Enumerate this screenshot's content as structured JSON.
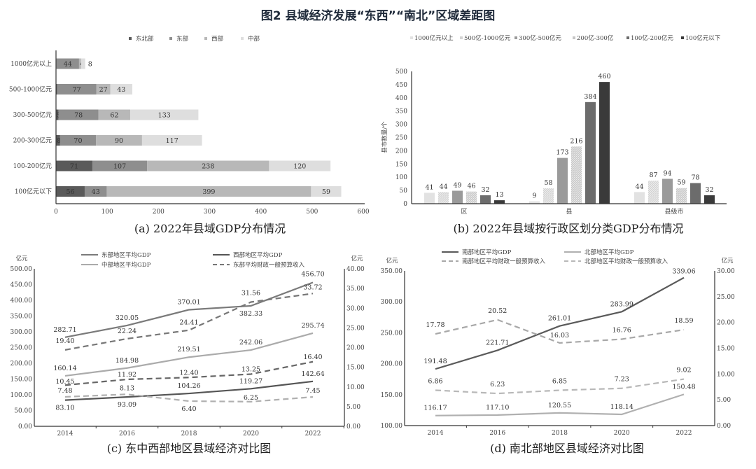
{
  "title": "图2 县域经济发展“东西”“南北”区域差距图",
  "chart_data": [
    {
      "id": "a",
      "type": "bar",
      "orientation": "horizontal",
      "stacked": true,
      "caption": "(a) 2022年县域GDP分布情况",
      "categories": [
        "1000亿元以上",
        "500-1000亿元",
        "300-500亿元",
        "200-300亿元",
        "100-200亿元",
        "100亿元以下"
      ],
      "series": [
        {
          "name": "东北部",
          "color": "#5a5a5a",
          "values": [
            1,
            2,
            5,
            8,
            71,
            56
          ]
        },
        {
          "name": "东部",
          "color": "#8e8e8e",
          "values": [
            44,
            77,
            78,
            70,
            107,
            43
          ]
        },
        {
          "name": "西部",
          "color": "#b8b8b8",
          "values": [
            4,
            27,
            62,
            90,
            238,
            399
          ]
        },
        {
          "name": "中部",
          "color": "#dedede",
          "values": [
            8,
            43,
            133,
            117,
            120,
            59
          ]
        }
      ],
      "xlim": [
        0,
        600
      ],
      "xticks": [
        "0",
        "100",
        "200",
        "300",
        "400",
        "500",
        "600"
      ],
      "legend": "top"
    },
    {
      "id": "b",
      "type": "bar",
      "caption": "(b) 2022年县域按行政区划分类GDP分布情况",
      "ylabel": "县市数量/个",
      "categories": [
        "区",
        "县",
        "县级市"
      ],
      "series": [
        {
          "name": "1000亿元以上",
          "color": "#e2e2e2",
          "values": [
            41,
            9,
            44
          ]
        },
        {
          "name": "500亿-1000亿元",
          "color": "#d4d4d4",
          "values": [
            44,
            58,
            87
          ]
        },
        {
          "name": "300亿-500亿元",
          "color": "#9a9a9a",
          "values": [
            49,
            173,
            94
          ]
        },
        {
          "name": "200亿-300亿",
          "color": "#c6c6c6",
          "values": [
            46,
            216,
            59
          ]
        },
        {
          "name": "100亿-200亿元",
          "color": "#6c6c6c",
          "values": [
            32,
            384,
            78
          ]
        },
        {
          "name": "100亿元以下",
          "color": "#3a3a3a",
          "values": [
            13,
            460,
            32
          ]
        }
      ],
      "ylim": [
        0,
        500
      ],
      "yticks": [
        "0",
        "50",
        "100",
        "150",
        "200",
        "250",
        "300",
        "350",
        "400",
        "450",
        "500"
      ],
      "legend": "top"
    },
    {
      "id": "c",
      "type": "line",
      "caption": "(c) 东中西部地区县域经济对比图",
      "ylabel_left": "亿元",
      "ylabel_right": "亿元",
      "x": [
        "2014",
        "2016",
        "2018",
        "2020",
        "2022"
      ],
      "ylim_left": [
        0,
        500
      ],
      "ylim_right": [
        0,
        40
      ],
      "yticks_left": [
        "0.00",
        "50.00",
        "100.00",
        "150.00",
        "200.00",
        "250.00",
        "300.00",
        "350.00",
        "400.00",
        "450.00",
        "500.00"
      ],
      "yticks_right": [
        "0.00",
        "5.00",
        "10.00",
        "15.00",
        "20.00",
        "25.00",
        "30.00",
        "35.00",
        "40.00"
      ],
      "series": [
        {
          "name": "东部地区平均GDP",
          "axis": "left",
          "style": "solid",
          "color": "#7a7a7a",
          "values": [
            "282.71",
            "320.05",
            "370.01",
            "382.33",
            "456.70"
          ]
        },
        {
          "name": "西部地区平均GDP",
          "axis": "left",
          "style": "solid",
          "color": "#555555",
          "values": [
            "83.10",
            "93.09",
            "104.26",
            "119.27",
            "142.64"
          ]
        },
        {
          "name": "中部地区平均GDP",
          "axis": "left",
          "style": "solid",
          "color": "#ababab",
          "values": [
            "160.14",
            "184.98",
            "219.51",
            "242.06",
            "295.74"
          ]
        },
        {
          "name": "东部平均财政一般预算收入",
          "axis": "right",
          "style": "dashed",
          "color": "#777777",
          "values": [
            "19.40",
            "22.24",
            "24.41",
            "31.56",
            "33.72"
          ]
        },
        {
          "axis": "right",
          "style": "dashed",
          "color": "#666666",
          "values": [
            "10.45",
            "11.92",
            "12.40",
            "13.25",
            "16.40"
          ]
        },
        {
          "axis": "right",
          "style": "dashed",
          "color": "#b0b0b0",
          "values": [
            "7.48",
            "8.13",
            "6.40",
            "6.25",
            "7.45"
          ]
        }
      ],
      "legend": "top"
    },
    {
      "id": "d",
      "type": "line",
      "caption": "(d) 南北部地区县域经济对比图",
      "ylabel_left": "亿元",
      "ylabel_right": "亿元",
      "x": [
        "2014",
        "2016",
        "2018",
        "2020",
        "2022"
      ],
      "ylim_left": [
        100,
        350
      ],
      "ylim_right": [
        0,
        30
      ],
      "yticks_left": [
        "100.00",
        "150.00",
        "200.00",
        "250.00",
        "300.00",
        "350.00"
      ],
      "yticks_right": [
        "0.00",
        "5.00",
        "10.00",
        "15.00",
        "20.00",
        "25.00",
        "30.00"
      ],
      "series": [
        {
          "name": "南部地区平均GDP",
          "axis": "left",
          "style": "solid",
          "color": "#5a5a5a",
          "values": [
            "191.48",
            "221.71",
            "261.01",
            "283.99",
            "339.06"
          ]
        },
        {
          "name": "北部地区平均GDP",
          "axis": "left",
          "style": "solid",
          "color": "#b0b0b0",
          "values": [
            "116.17",
            "117.10",
            "120.55",
            "118.14",
            "150.48"
          ]
        },
        {
          "name": "南部地区平均财政一般预算收入",
          "axis": "right",
          "style": "dashed",
          "color": "#a8a8a8",
          "values": [
            "17.78",
            "20.52",
            "16.03",
            "16.76",
            "18.59"
          ]
        },
        {
          "name": "北部地区平均财政一般预算收入",
          "axis": "right",
          "style": "dashed",
          "color": "#b8b8b8",
          "values": [
            "6.86",
            "6.23",
            "6.85",
            "7.23",
            "9.02"
          ]
        }
      ],
      "legend": "top"
    }
  ]
}
